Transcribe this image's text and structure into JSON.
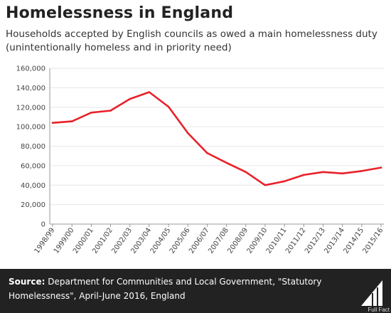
{
  "title": "Homelessness in England",
  "subtitle": "Households accepted by English councils as owed a main homelessness duty (unintentionally homeless and in priority need)",
  "source": {
    "label": "Source:",
    "text": "Department for Communities and Local Government, \"Statutory Homelessness\", April-June 2016, England"
  },
  "logo": {
    "text": "Full Fact"
  },
  "colors": {
    "line": "#e8212a",
    "footer": "#222222",
    "grid": "#e6e6e6"
  },
  "chart_data": {
    "type": "line",
    "title": "Homelessness in England",
    "xlabel": "",
    "ylabel": "",
    "ylim": [
      0,
      160000
    ],
    "yticks": [
      0,
      20000,
      40000,
      60000,
      80000,
      100000,
      120000,
      140000,
      160000
    ],
    "ytick_labels": [
      "0",
      "20,000",
      "40,000",
      "60,000",
      "80,000",
      "100,000",
      "120,000",
      "140,000",
      "160,000"
    ],
    "grid": true,
    "legend": "none",
    "categories": [
      "1998/99",
      "1999/00",
      "2000/01",
      "2001/02",
      "2002/03",
      "2003/04",
      "2004/05",
      "2005/06",
      "2006/07",
      "2007/08",
      "2008/09",
      "2009/10",
      "2010/11",
      "2011/12",
      "2012/13",
      "2013/14",
      "2014/15",
      "2015/16"
    ],
    "series": [
      {
        "values": [
          104000,
          105500,
          114500,
          116500,
          128500,
          135500,
          120500,
          93500,
          73000,
          63000,
          53500,
          40000,
          44000,
          50500,
          53500,
          52000,
          54500,
          58000
        ]
      }
    ]
  }
}
